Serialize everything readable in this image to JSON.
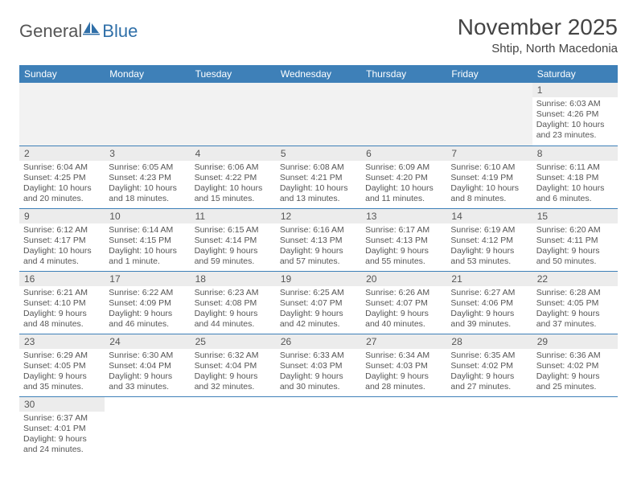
{
  "brand": {
    "part1": "General",
    "part2": "Blue"
  },
  "title": "November 2025",
  "location": "Shtip, North Macedonia",
  "colors": {
    "header_bg": "#3e80b8",
    "header_text": "#ffffff",
    "daynum_bg": "#ececec",
    "border": "#3e80b8",
    "empty_bg": "#f2f2f2",
    "text": "#555555"
  },
  "weekdays": [
    "Sunday",
    "Monday",
    "Tuesday",
    "Wednesday",
    "Thursday",
    "Friday",
    "Saturday"
  ],
  "startOffset": 6,
  "days": [
    {
      "n": 1,
      "sunrise": "6:03 AM",
      "sunset": "4:26 PM",
      "daylight": "10 hours and 23 minutes."
    },
    {
      "n": 2,
      "sunrise": "6:04 AM",
      "sunset": "4:25 PM",
      "daylight": "10 hours and 20 minutes."
    },
    {
      "n": 3,
      "sunrise": "6:05 AM",
      "sunset": "4:23 PM",
      "daylight": "10 hours and 18 minutes."
    },
    {
      "n": 4,
      "sunrise": "6:06 AM",
      "sunset": "4:22 PM",
      "daylight": "10 hours and 15 minutes."
    },
    {
      "n": 5,
      "sunrise": "6:08 AM",
      "sunset": "4:21 PM",
      "daylight": "10 hours and 13 minutes."
    },
    {
      "n": 6,
      "sunrise": "6:09 AM",
      "sunset": "4:20 PM",
      "daylight": "10 hours and 11 minutes."
    },
    {
      "n": 7,
      "sunrise": "6:10 AM",
      "sunset": "4:19 PM",
      "daylight": "10 hours and 8 minutes."
    },
    {
      "n": 8,
      "sunrise": "6:11 AM",
      "sunset": "4:18 PM",
      "daylight": "10 hours and 6 minutes."
    },
    {
      "n": 9,
      "sunrise": "6:12 AM",
      "sunset": "4:17 PM",
      "daylight": "10 hours and 4 minutes."
    },
    {
      "n": 10,
      "sunrise": "6:14 AM",
      "sunset": "4:15 PM",
      "daylight": "10 hours and 1 minute."
    },
    {
      "n": 11,
      "sunrise": "6:15 AM",
      "sunset": "4:14 PM",
      "daylight": "9 hours and 59 minutes."
    },
    {
      "n": 12,
      "sunrise": "6:16 AM",
      "sunset": "4:13 PM",
      "daylight": "9 hours and 57 minutes."
    },
    {
      "n": 13,
      "sunrise": "6:17 AM",
      "sunset": "4:13 PM",
      "daylight": "9 hours and 55 minutes."
    },
    {
      "n": 14,
      "sunrise": "6:19 AM",
      "sunset": "4:12 PM",
      "daylight": "9 hours and 53 minutes."
    },
    {
      "n": 15,
      "sunrise": "6:20 AM",
      "sunset": "4:11 PM",
      "daylight": "9 hours and 50 minutes."
    },
    {
      "n": 16,
      "sunrise": "6:21 AM",
      "sunset": "4:10 PM",
      "daylight": "9 hours and 48 minutes."
    },
    {
      "n": 17,
      "sunrise": "6:22 AM",
      "sunset": "4:09 PM",
      "daylight": "9 hours and 46 minutes."
    },
    {
      "n": 18,
      "sunrise": "6:23 AM",
      "sunset": "4:08 PM",
      "daylight": "9 hours and 44 minutes."
    },
    {
      "n": 19,
      "sunrise": "6:25 AM",
      "sunset": "4:07 PM",
      "daylight": "9 hours and 42 minutes."
    },
    {
      "n": 20,
      "sunrise": "6:26 AM",
      "sunset": "4:07 PM",
      "daylight": "9 hours and 40 minutes."
    },
    {
      "n": 21,
      "sunrise": "6:27 AM",
      "sunset": "4:06 PM",
      "daylight": "9 hours and 39 minutes."
    },
    {
      "n": 22,
      "sunrise": "6:28 AM",
      "sunset": "4:05 PM",
      "daylight": "9 hours and 37 minutes."
    },
    {
      "n": 23,
      "sunrise": "6:29 AM",
      "sunset": "4:05 PM",
      "daylight": "9 hours and 35 minutes."
    },
    {
      "n": 24,
      "sunrise": "6:30 AM",
      "sunset": "4:04 PM",
      "daylight": "9 hours and 33 minutes."
    },
    {
      "n": 25,
      "sunrise": "6:32 AM",
      "sunset": "4:04 PM",
      "daylight": "9 hours and 32 minutes."
    },
    {
      "n": 26,
      "sunrise": "6:33 AM",
      "sunset": "4:03 PM",
      "daylight": "9 hours and 30 minutes."
    },
    {
      "n": 27,
      "sunrise": "6:34 AM",
      "sunset": "4:03 PM",
      "daylight": "9 hours and 28 minutes."
    },
    {
      "n": 28,
      "sunrise": "6:35 AM",
      "sunset": "4:02 PM",
      "daylight": "9 hours and 27 minutes."
    },
    {
      "n": 29,
      "sunrise": "6:36 AM",
      "sunset": "4:02 PM",
      "daylight": "9 hours and 25 minutes."
    },
    {
      "n": 30,
      "sunrise": "6:37 AM",
      "sunset": "4:01 PM",
      "daylight": "9 hours and 24 minutes."
    }
  ],
  "labels": {
    "sunrise": "Sunrise:",
    "sunset": "Sunset:",
    "daylight": "Daylight:"
  }
}
